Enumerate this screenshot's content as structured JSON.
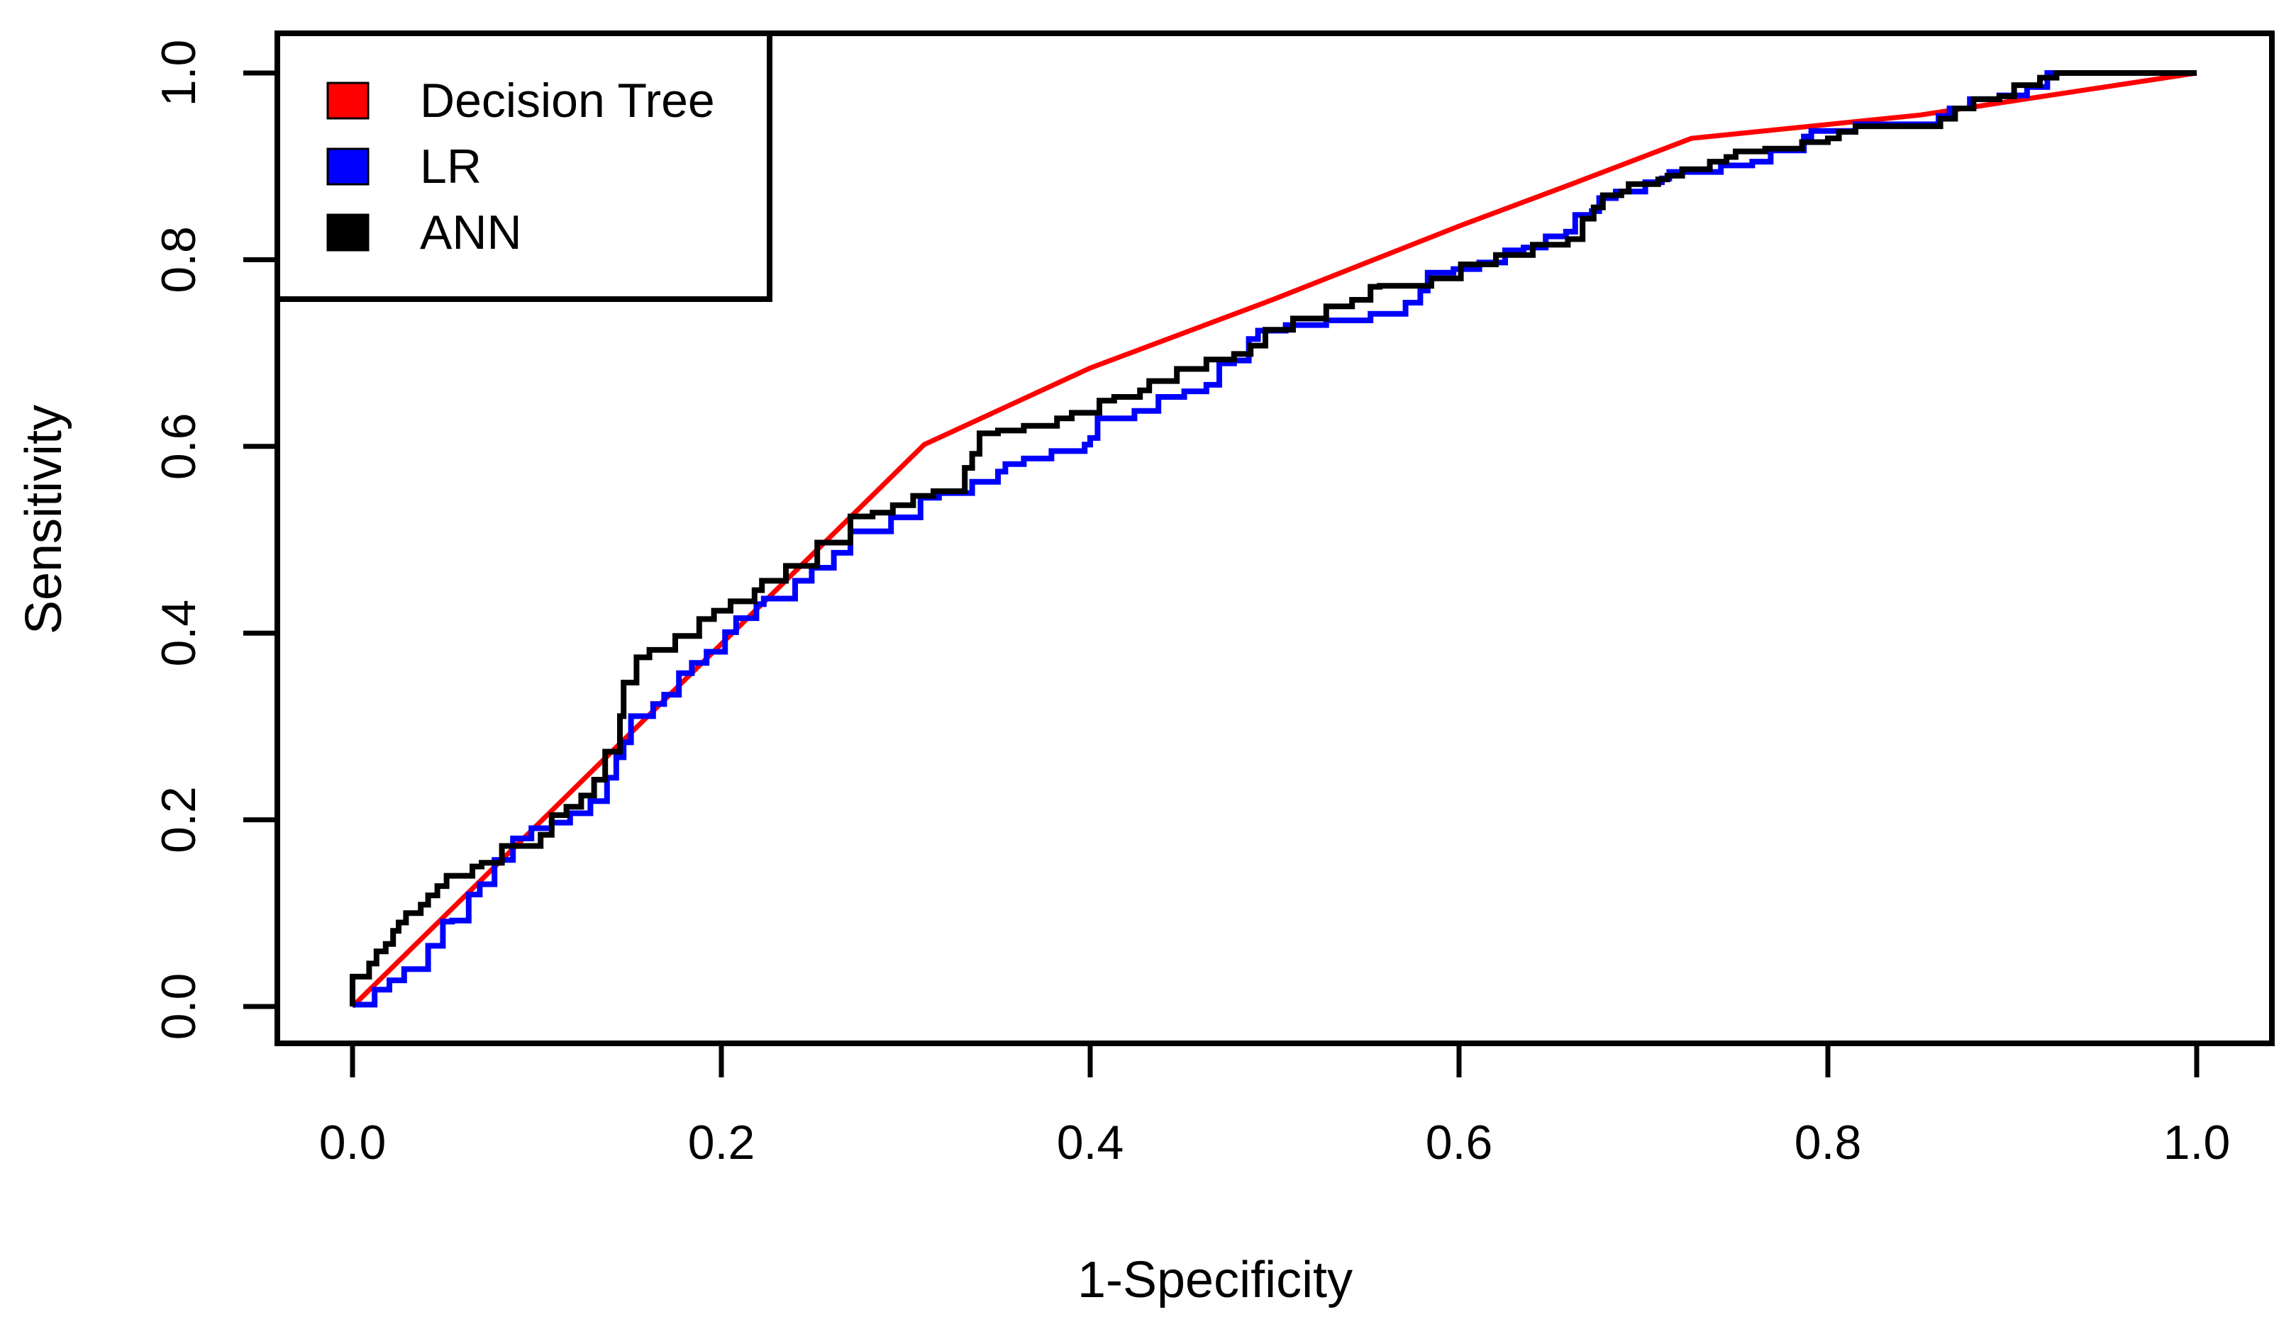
{
  "figure": {
    "background": "#ffffff",
    "frame_color": "#000000"
  },
  "chart_data": {
    "type": "line",
    "subtype": "roc-curves",
    "title": "",
    "xlabel": "1-Specificity",
    "ylabel": "Sensitivity",
    "xlim": [
      0,
      1
    ],
    "ylim": [
      0,
      1
    ],
    "grid": false,
    "x_ticks": [
      "0.0",
      "0.2",
      "0.4",
      "0.6",
      "0.8",
      "1.0"
    ],
    "y_ticks": [
      "0.0",
      "0.2",
      "0.4",
      "0.6",
      "0.8",
      "1.0"
    ],
    "legend": {
      "position": "top-left",
      "entries": [
        {
          "label": "Decision Tree",
          "color": "#ff0000"
        },
        {
          "label": "LR",
          "color": "#0000ff"
        },
        {
          "label": "ANN",
          "color": "#000000"
        }
      ]
    },
    "series": [
      {
        "name": "Decision Tree",
        "color": "#ff0000",
        "style": "linear",
        "width": 7,
        "points": [
          [
            0,
            0
          ],
          [
            0.31,
            0.602
          ],
          [
            0.4,
            0.684
          ],
          [
            0.5,
            0.758
          ],
          [
            0.6,
            0.836
          ],
          [
            0.661,
            0.881
          ],
          [
            0.726,
            0.93
          ],
          [
            0.85,
            0.955
          ],
          [
            1,
            1
          ]
        ]
      },
      {
        "name": "LR",
        "color": "#0000ff",
        "style": "step",
        "width": 8,
        "points": [
          [
            0,
            0
          ],
          [
            0.012,
            0.002
          ],
          [
            0.012,
            0.013
          ],
          [
            0.02,
            0.018
          ],
          [
            0.028,
            0.028
          ],
          [
            0.028,
            0.038
          ],
          [
            0.041,
            0.04
          ],
          [
            0.041,
            0.065
          ],
          [
            0.049,
            0.065
          ],
          [
            0.049,
            0.078
          ],
          [
            0.054,
            0.091
          ],
          [
            0.063,
            0.092
          ],
          [
            0.063,
            0.106
          ],
          [
            0.069,
            0.12
          ],
          [
            0.077,
            0.131
          ],
          [
            0.087,
            0.157
          ],
          [
            0.087,
            0.167
          ],
          [
            0.097,
            0.18
          ],
          [
            0.108,
            0.191
          ],
          [
            0.118,
            0.197
          ],
          [
            0.129,
            0.207
          ],
          [
            0.138,
            0.22
          ],
          [
            0.143,
            0.245
          ],
          [
            0.147,
            0.267
          ],
          [
            0.151,
            0.283
          ],
          [
            0.163,
            0.311
          ],
          [
            0.169,
            0.324
          ],
          [
            0.177,
            0.334
          ],
          [
            0.184,
            0.357
          ],
          [
            0.192,
            0.368
          ],
          [
            0.202,
            0.38
          ],
          [
            0.208,
            0.401
          ],
          [
            0.219,
            0.416
          ],
          [
            0.223,
            0.431
          ],
          [
            0.24,
            0.437
          ],
          [
            0.249,
            0.456
          ],
          [
            0.261,
            0.47
          ],
          [
            0.27,
            0.486
          ],
          [
            0.292,
            0.509
          ],
          [
            0.308,
            0.524
          ],
          [
            0.318,
            0.545
          ],
          [
            0.336,
            0.55
          ],
          [
            0.35,
            0.562
          ],
          [
            0.354,
            0.573
          ],
          [
            0.364,
            0.581
          ],
          [
            0.379,
            0.587
          ],
          [
            0.397,
            0.595
          ],
          [
            0.4,
            0.602
          ],
          [
            0.404,
            0.609
          ],
          [
            0.424,
            0.63
          ],
          [
            0.437,
            0.638
          ],
          [
            0.451,
            0.653
          ],
          [
            0.463,
            0.659
          ],
          [
            0.47,
            0.666
          ],
          [
            0.478,
            0.689
          ],
          [
            0.486,
            0.692
          ],
          [
            0.491,
            0.715
          ],
          [
            0.506,
            0.724
          ],
          [
            0.528,
            0.73
          ],
          [
            0.552,
            0.735
          ],
          [
            0.571,
            0.742
          ],
          [
            0.579,
            0.754
          ],
          [
            0.583,
            0.767
          ],
          [
            0.597,
            0.786
          ],
          [
            0.611,
            0.79
          ],
          [
            0.625,
            0.797
          ],
          [
            0.635,
            0.81
          ],
          [
            0.647,
            0.813
          ],
          [
            0.658,
            0.825
          ],
          [
            0.663,
            0.83
          ],
          [
            0.672,
            0.848
          ],
          [
            0.676,
            0.852
          ],
          [
            0.685,
            0.866
          ],
          [
            0.701,
            0.873
          ],
          [
            0.71,
            0.883
          ],
          [
            0.714,
            0.887
          ],
          [
            0.742,
            0.894
          ],
          [
            0.759,
            0.901
          ],
          [
            0.769,
            0.905
          ],
          [
            0.787,
            0.917
          ],
          [
            0.791,
            0.932
          ],
          [
            0.815,
            0.938
          ],
          [
            0.86,
            0.945
          ],
          [
            0.866,
            0.954
          ],
          [
            0.877,
            0.962
          ],
          [
            0.893,
            0.972
          ],
          [
            0.908,
            0.976
          ],
          [
            0.919,
            0.985
          ],
          [
            0.946,
            1
          ],
          [
            1,
            1
          ]
        ]
      },
      {
        "name": "ANN",
        "color": "#000000",
        "style": "step",
        "width": 8,
        "points": [
          [
            0,
            0
          ],
          [
            0,
            0.018
          ],
          [
            0.009,
            0.032
          ],
          [
            0.013,
            0.046
          ],
          [
            0.018,
            0.059
          ],
          [
            0.022,
            0.067
          ],
          [
            0.025,
            0.081
          ],
          [
            0.029,
            0.09
          ],
          [
            0.037,
            0.1
          ],
          [
            0.041,
            0.109
          ],
          [
            0.046,
            0.119
          ],
          [
            0.051,
            0.129
          ],
          [
            0.065,
            0.14
          ],
          [
            0.07,
            0.15
          ],
          [
            0.081,
            0.154
          ],
          [
            0.102,
            0.172
          ],
          [
            0.108,
            0.184
          ],
          [
            0.116,
            0.205
          ],
          [
            0.124,
            0.214
          ],
          [
            0.131,
            0.226
          ],
          [
            0.137,
            0.243
          ],
          [
            0.145,
            0.273
          ],
          [
            0.147,
            0.311
          ],
          [
            0.154,
            0.347
          ],
          [
            0.161,
            0.374
          ],
          [
            0.175,
            0.382
          ],
          [
            0.188,
            0.397
          ],
          [
            0.196,
            0.415
          ],
          [
            0.205,
            0.424
          ],
          [
            0.218,
            0.434
          ],
          [
            0.222,
            0.446
          ],
          [
            0.235,
            0.456
          ],
          [
            0.252,
            0.472
          ],
          [
            0.27,
            0.497
          ],
          [
            0.282,
            0.525
          ],
          [
            0.293,
            0.529
          ],
          [
            0.304,
            0.537
          ],
          [
            0.315,
            0.547
          ],
          [
            0.332,
            0.552
          ],
          [
            0.336,
            0.577
          ],
          [
            0.34,
            0.592
          ],
          [
            0.35,
            0.614
          ],
          [
            0.364,
            0.617
          ],
          [
            0.382,
            0.622
          ],
          [
            0.39,
            0.63
          ],
          [
            0.405,
            0.636
          ],
          [
            0.413,
            0.649
          ],
          [
            0.427,
            0.653
          ],
          [
            0.432,
            0.66
          ],
          [
            0.447,
            0.67
          ],
          [
            0.463,
            0.683
          ],
          [
            0.478,
            0.693
          ],
          [
            0.487,
            0.699
          ],
          [
            0.495,
            0.708
          ],
          [
            0.51,
            0.725
          ],
          [
            0.528,
            0.737
          ],
          [
            0.542,
            0.75
          ],
          [
            0.552,
            0.757
          ],
          [
            0.557,
            0.771
          ],
          [
            0.585,
            0.772
          ],
          [
            0.601,
            0.78
          ],
          [
            0.62,
            0.795
          ],
          [
            0.64,
            0.805
          ],
          [
            0.659,
            0.816
          ],
          [
            0.667,
            0.822
          ],
          [
            0.673,
            0.844
          ],
          [
            0.678,
            0.856
          ],
          [
            0.688,
            0.869
          ],
          [
            0.692,
            0.873
          ],
          [
            0.708,
            0.881
          ],
          [
            0.713,
            0.886
          ],
          [
            0.721,
            0.89
          ],
          [
            0.736,
            0.897
          ],
          [
            0.745,
            0.905
          ],
          [
            0.75,
            0.91
          ],
          [
            0.766,
            0.916
          ],
          [
            0.786,
            0.919
          ],
          [
            0.8,
            0.926
          ],
          [
            0.806,
            0.93
          ],
          [
            0.815,
            0.937
          ],
          [
            0.861,
            0.943
          ],
          [
            0.869,
            0.951
          ],
          [
            0.879,
            0.962
          ],
          [
            0.893,
            0.972
          ],
          [
            0.901,
            0.975
          ],
          [
            0.915,
            0.987
          ],
          [
            0.924,
            0.995
          ],
          [
            0.943,
            1
          ],
          [
            1,
            1
          ]
        ]
      }
    ]
  }
}
